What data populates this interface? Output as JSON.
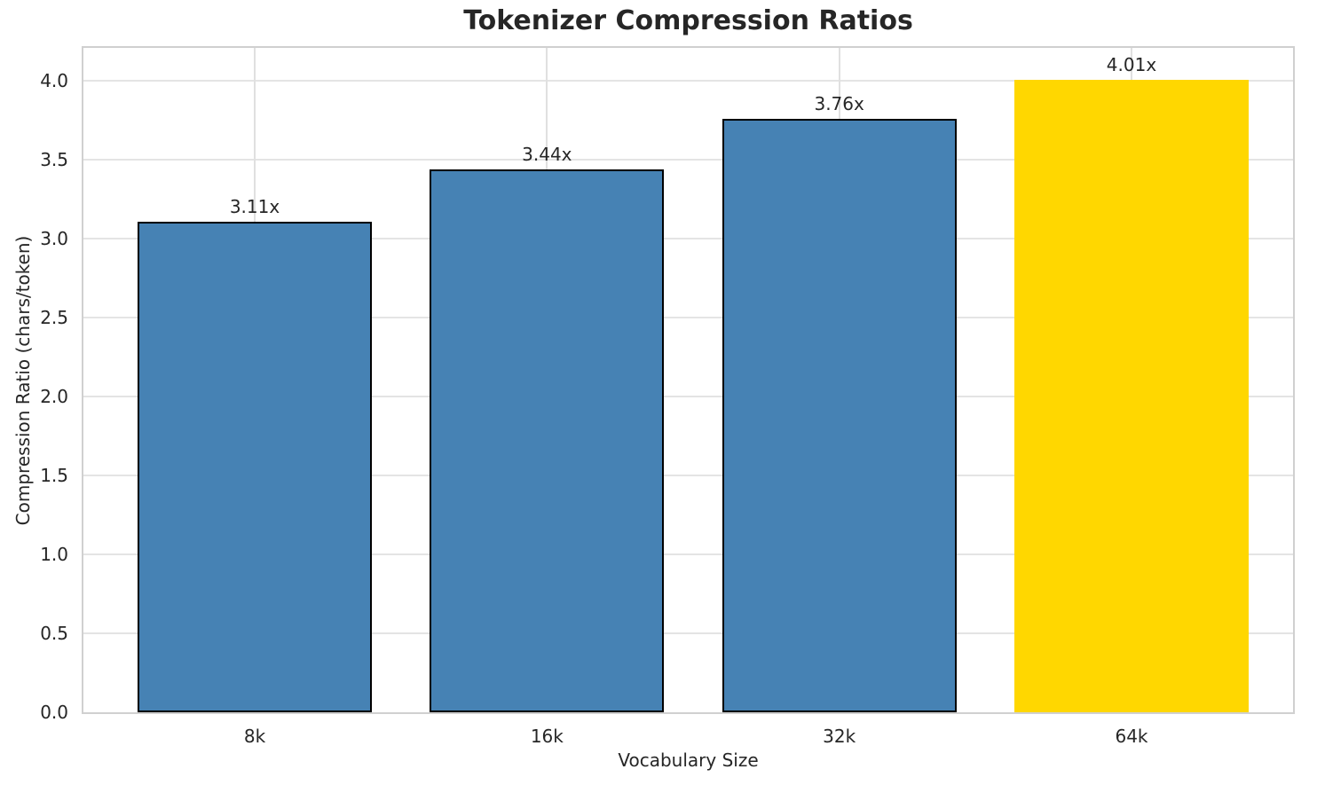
{
  "chart_data": {
    "type": "bar",
    "title": "Tokenizer Compression Ratios",
    "xlabel": "Vocabulary Size",
    "ylabel": "Compression Ratio (chars/token)",
    "categories": [
      "8k",
      "16k",
      "32k",
      "64k"
    ],
    "values": [
      3.11,
      3.44,
      3.76,
      4.01
    ],
    "bar_labels": [
      "3.11x",
      "3.44x",
      "3.76x",
      "4.01x"
    ],
    "bar_colors": [
      "#4682b4",
      "#4682b4",
      "#4682b4",
      "#ffd700"
    ],
    "bar_edge_colors": [
      "#000000",
      "#000000",
      "#000000",
      "none"
    ],
    "highlighted_category": "64k",
    "ytick_labels": [
      "0.0",
      "0.5",
      "1.0",
      "1.5",
      "2.0",
      "2.5",
      "3.0",
      "3.5",
      "4.0"
    ],
    "ylim": [
      0,
      4.21
    ],
    "grid": true,
    "legend_position": "none",
    "background_color": "#ffffff",
    "text_color": "#262626"
  }
}
